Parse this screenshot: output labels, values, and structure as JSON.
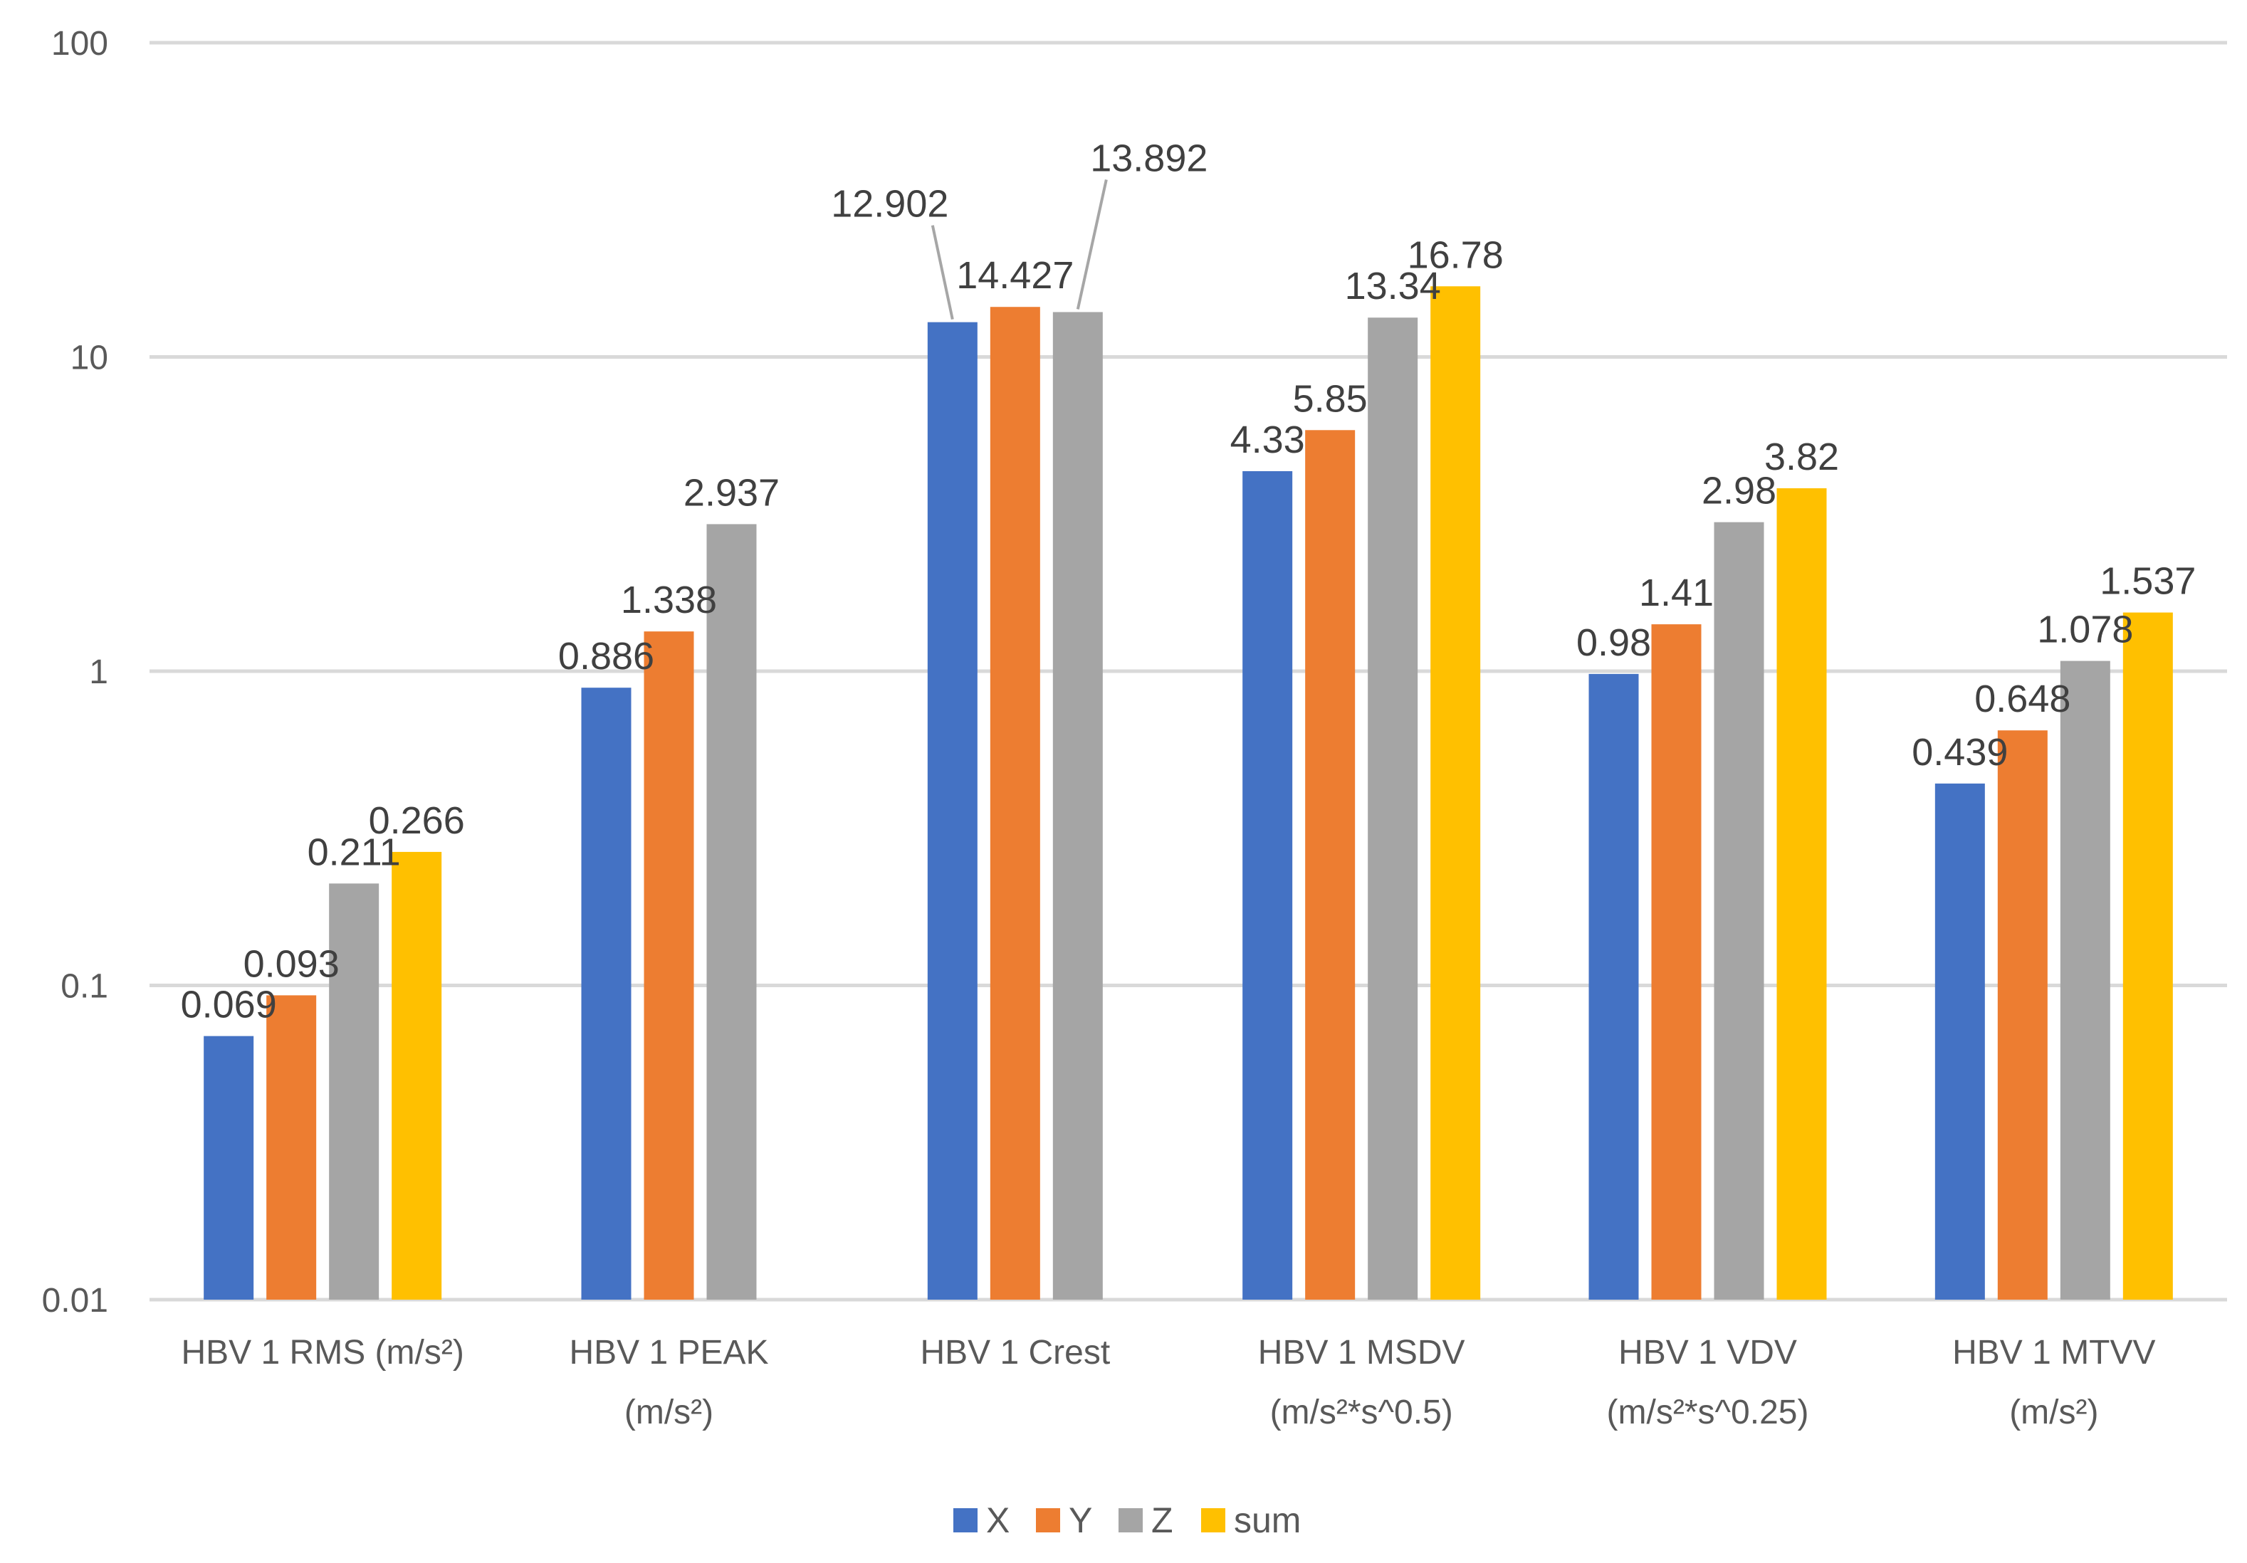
{
  "chart_data": {
    "type": "bar",
    "title": "",
    "xlabel": "",
    "ylabel": "",
    "yscale": "log",
    "ylim": [
      0.01,
      100
    ],
    "yticks": [
      "0.01",
      "0.1",
      "1",
      "10",
      "100"
    ],
    "grid": true,
    "legend_position": "bottom",
    "categories": [
      [
        "HBV 1 RMS (m/s²)"
      ],
      [
        "HBV 1 PEAK",
        "(m/s²)"
      ],
      [
        "HBV 1 Crest"
      ],
      [
        "HBV 1 MSDV",
        "(m/s²*s^0.5)"
      ],
      [
        "HBV 1 VDV",
        "(m/s²*s^0.25)"
      ],
      [
        "HBV 1 MTVV",
        "(m/s²)"
      ]
    ],
    "series": [
      {
        "name": "X",
        "color": "#4472c4",
        "values": [
          0.069,
          0.886,
          12.902,
          4.33,
          0.98,
          0.439
        ]
      },
      {
        "name": "Y",
        "color": "#ed7d31",
        "values": [
          0.093,
          1.338,
          14.427,
          5.85,
          1.41,
          0.648
        ]
      },
      {
        "name": "Z",
        "color": "#a5a5a5",
        "values": [
          0.211,
          2.937,
          13.892,
          13.34,
          2.98,
          1.078
        ]
      },
      {
        "name": "sum",
        "color": "#ffc000",
        "values": [
          0.266,
          null,
          null,
          16.78,
          3.82,
          1.537
        ]
      }
    ],
    "data_labels": [
      [
        "0.069",
        "0.886",
        "12.902",
        "4.33",
        "0.98",
        "0.439"
      ],
      [
        "0.093",
        "1.338",
        "14.427",
        "5.85",
        "1.41",
        "0.648"
      ],
      [
        "0.211",
        "2.937",
        "13.892",
        "13.34",
        "2.98",
        "1.078"
      ],
      [
        "0.266",
        null,
        null,
        "16.78",
        "3.82",
        "1.537"
      ]
    ]
  }
}
